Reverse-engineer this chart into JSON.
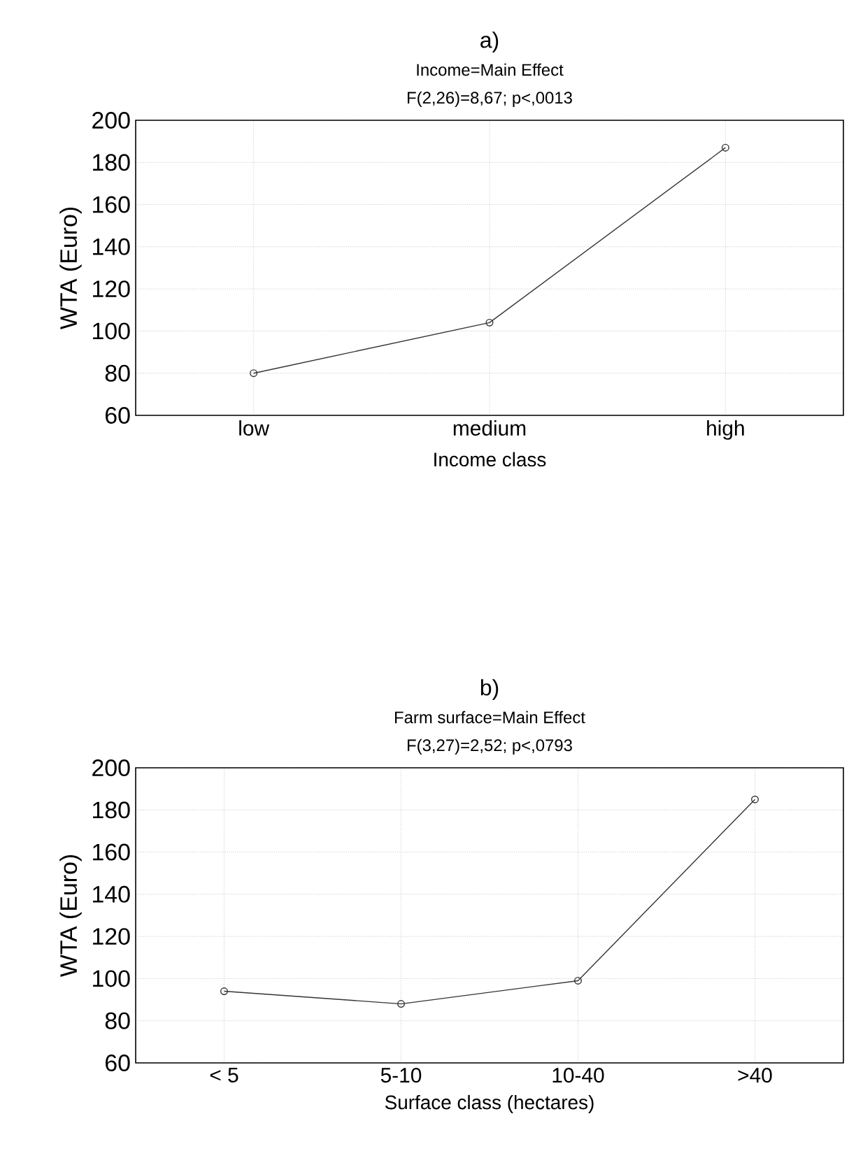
{
  "chart_data": [
    {
      "type": "line",
      "title": "a)",
      "subtitle": "Income=Main Effect",
      "annotations": [
        "F(2,26)=8,67; p<,0013"
      ],
      "xlabel": "Income class",
      "ylabel": "WTA (Euro)",
      "categories": [
        "low",
        "medium",
        "high"
      ],
      "values": [
        80,
        104,
        187
      ],
      "color": "#333333",
      "marker": "circle",
      "line_style": "solid",
      "grid": true,
      "ylim": [
        60,
        200
      ],
      "yticks": [
        60,
        80,
        100,
        120,
        140,
        160,
        180,
        200
      ]
    },
    {
      "type": "line",
      "title": "b)",
      "subtitle": "Farm surface=Main Effect",
      "annotations": [
        "F(3,27)=2,52; p<,0793"
      ],
      "xlabel": "Surface class (hectares)",
      "ylabel": "WTA (Euro)",
      "categories": [
        "< 5",
        "5-10",
        "10-40",
        ">40"
      ],
      "values": [
        94,
        88,
        99,
        185
      ],
      "color": "#333333",
      "marker": "circle",
      "line_style": "solid",
      "grid": true,
      "ylim": [
        60,
        200
      ],
      "yticks": [
        60,
        80,
        100,
        120,
        140,
        160,
        180,
        200
      ]
    }
  ]
}
